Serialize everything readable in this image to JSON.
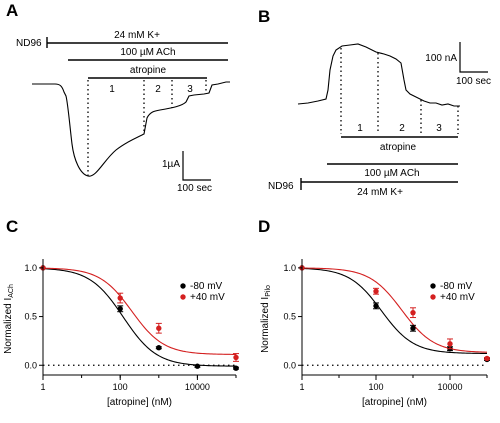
{
  "panels": {
    "A": {
      "letter": "A",
      "bars": {
        "nd96": "ND96",
        "k": "24 mM K+",
        "ach": "100 µM ACh",
        "atropine": "atropine"
      },
      "segments": [
        "1",
        "2",
        "3"
      ],
      "scale": {
        "y": "1µA",
        "x": "100 sec"
      }
    },
    "B": {
      "letter": "B",
      "bars": {
        "nd96": "ND96",
        "k": "24 mM K+",
        "ach": "100 µM ACh",
        "atropine": "atropine"
      },
      "segments": [
        "1",
        "2",
        "3"
      ],
      "scale": {
        "y": "100 nA",
        "x": "100 sec"
      }
    }
  },
  "chart_data": [
    {
      "panel": "C",
      "type": "scatter",
      "letter": "C",
      "xlabel": "[atropine] (nM)",
      "ylabel_main": "Normalized I",
      "ylabel_sub": "ACh",
      "xscale": "log",
      "xlim": [
        1,
        100000
      ],
      "ylim": [
        -0.1,
        1.05
      ],
      "xticks": [
        1,
        100,
        10000
      ],
      "xtick_labels": [
        "1",
        "100",
        "10000"
      ],
      "yticks": [
        0.0,
        0.5,
        1.0
      ],
      "ytick_labels": [
        "0.0",
        "0.5",
        "1.0"
      ],
      "zero_line": true,
      "legend": "right",
      "series": [
        {
          "name": "-80 mV",
          "color": "#000000",
          "ic50": 120,
          "hill": 1.0,
          "bottom": -0.01,
          "points": [
            {
              "x": 1,
              "y": 1.0,
              "err": 0
            },
            {
              "x": 100,
              "y": 0.58,
              "err": 0.03
            },
            {
              "x": 1000,
              "y": 0.18,
              "err": 0.01
            },
            {
              "x": 10000,
              "y": -0.01,
              "err": 0.01
            },
            {
              "x": 100000,
              "y": -0.03,
              "err": 0.01
            }
          ]
        },
        {
          "name": "+40 mV",
          "color": "#d42020",
          "ic50": 200,
          "hill": 1.05,
          "bottom": 0.11,
          "points": [
            {
              "x": 1,
              "y": 1.0,
              "err": 0
            },
            {
              "x": 100,
              "y": 0.69,
              "err": 0.05
            },
            {
              "x": 1000,
              "y": 0.38,
              "err": 0.05
            },
            {
              "x": 100000,
              "y": 0.08,
              "err": 0.04
            }
          ]
        }
      ]
    },
    {
      "panel": "D",
      "type": "scatter",
      "letter": "D",
      "xlabel": "[atropine] (nM)",
      "ylabel_main": "Normalized I",
      "ylabel_sub": "Pilo",
      "xscale": "log",
      "xlim": [
        1,
        100000
      ],
      "ylim": [
        -0.1,
        1.05
      ],
      "xticks": [
        1,
        100,
        10000
      ],
      "xtick_labels": [
        "1",
        "100",
        "10000"
      ],
      "yticks": [
        0.0,
        0.5,
        1.0
      ],
      "ytick_labels": [
        "0.0",
        "0.5",
        "1.0"
      ],
      "zero_line": true,
      "legend": "right",
      "series": [
        {
          "name": "-80 mV",
          "color": "#000000",
          "ic50": 140,
          "hill": 1.0,
          "bottom": 0.12,
          "points": [
            {
              "x": 1,
              "y": 1.0,
              "err": 0
            },
            {
              "x": 100,
              "y": 0.61,
              "err": 0.03
            },
            {
              "x": 1000,
              "y": 0.38,
              "err": 0.03
            },
            {
              "x": 10000,
              "y": 0.17,
              "err": 0.02
            },
            {
              "x": 100000,
              "y": 0.06,
              "err": 0.01
            }
          ]
        },
        {
          "name": "+40 mV",
          "color": "#d42020",
          "ic50": 500,
          "hill": 1.0,
          "bottom": 0.13,
          "points": [
            {
              "x": 1,
              "y": 1.0,
              "err": 0
            },
            {
              "x": 100,
              "y": 0.76,
              "err": 0.03
            },
            {
              "x": 1000,
              "y": 0.54,
              "err": 0.05
            },
            {
              "x": 10000,
              "y": 0.22,
              "err": 0.05
            },
            {
              "x": 100000,
              "y": 0.07,
              "err": 0.01
            }
          ]
        }
      ]
    }
  ]
}
